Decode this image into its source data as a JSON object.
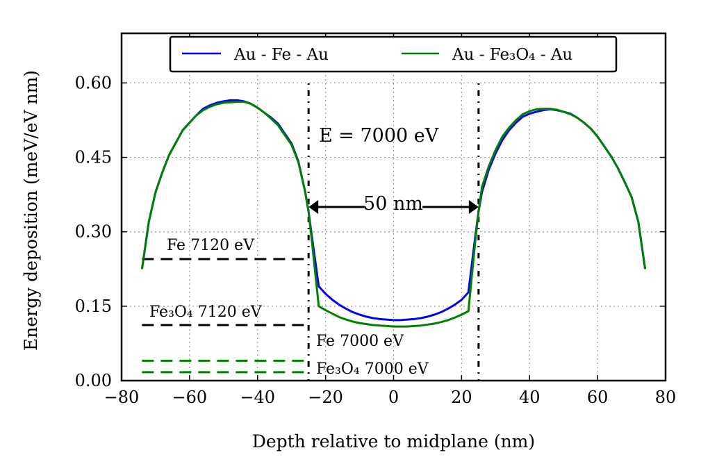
{
  "chart_data": {
    "type": "line",
    "title": "",
    "xlabel": "Depth relative to midplane (nm)",
    "ylabel": "Energy deposition (meV/eV nm)",
    "xlim": [
      -80,
      80
    ],
    "ylim": [
      0.0,
      0.6
    ],
    "ylim_display": [
      0.0,
      0.7
    ],
    "xticks": [
      -80,
      -60,
      -40,
      -20,
      0,
      20,
      40,
      60,
      80
    ],
    "xtick_labels": [
      "−80",
      "−60",
      "−40",
      "−20",
      "0",
      "20",
      "40",
      "60",
      "80"
    ],
    "yticks": [
      0.0,
      0.15,
      0.3,
      0.45,
      0.6
    ],
    "ytick_labels": [
      "0.00",
      "0.15",
      "0.30",
      "0.45",
      "0.60"
    ],
    "grid": true,
    "legend_position": "top-center",
    "series": [
      {
        "name": "Au - Fe - Au",
        "color": "#0000ff",
        "x": [
          -74,
          -72,
          -70,
          -68,
          -66,
          -64,
          -62,
          -60,
          -58,
          -56,
          -54,
          -52,
          -50,
          -48,
          -46,
          -44,
          -42,
          -40,
          -38,
          -36,
          -34,
          -32,
          -30,
          -28,
          -26,
          -25,
          -24,
          -22,
          -20,
          -18,
          -16,
          -14,
          -12,
          -10,
          -8,
          -6,
          -4,
          -2,
          0,
          2,
          4,
          6,
          8,
          10,
          12,
          14,
          16,
          18,
          20,
          22,
          24,
          25,
          26,
          28,
          30,
          32,
          34,
          36,
          38,
          40,
          42,
          44,
          46,
          48,
          50,
          52,
          54,
          56,
          58,
          60,
          62,
          64,
          66,
          68,
          70,
          72,
          74
        ],
        "y": [
          0.225,
          0.32,
          0.38,
          0.42,
          0.455,
          0.48,
          0.505,
          0.52,
          0.535,
          0.548,
          0.555,
          0.56,
          0.563,
          0.565,
          0.565,
          0.563,
          0.558,
          0.55,
          0.54,
          0.53,
          0.518,
          0.498,
          0.478,
          0.442,
          0.38,
          0.34,
          0.29,
          0.19,
          0.175,
          0.163,
          0.153,
          0.145,
          0.138,
          0.133,
          0.129,
          0.126,
          0.124,
          0.123,
          0.122,
          0.122,
          0.123,
          0.124,
          0.126,
          0.129,
          0.133,
          0.138,
          0.145,
          0.153,
          0.163,
          0.178,
          0.29,
          0.34,
          0.38,
          0.425,
          0.458,
          0.485,
          0.505,
          0.52,
          0.532,
          0.538,
          0.542,
          0.545,
          0.547,
          0.545,
          0.542,
          0.538,
          0.53,
          0.52,
          0.508,
          0.492,
          0.472,
          0.452,
          0.428,
          0.4,
          0.37,
          0.32,
          0.225
        ]
      },
      {
        "name": "Au - Fe₃O₄ - Au",
        "color": "#008000",
        "x": [
          -74,
          -72,
          -70,
          -68,
          -66,
          -64,
          -62,
          -60,
          -58,
          -56,
          -54,
          -52,
          -50,
          -48,
          -46,
          -44,
          -42,
          -40,
          -38,
          -36,
          -34,
          -32,
          -30,
          -28,
          -26,
          -25,
          -24,
          -22,
          -20,
          -18,
          -16,
          -14,
          -12,
          -10,
          -8,
          -6,
          -4,
          -2,
          0,
          2,
          4,
          6,
          8,
          10,
          12,
          14,
          16,
          18,
          20,
          22,
          24,
          25,
          26,
          28,
          30,
          32,
          34,
          36,
          38,
          40,
          42,
          44,
          46,
          48,
          50,
          52,
          54,
          56,
          58,
          60,
          62,
          64,
          66,
          68,
          70,
          72,
          74
        ],
        "y": [
          0.225,
          0.32,
          0.38,
          0.42,
          0.455,
          0.48,
          0.505,
          0.52,
          0.535,
          0.545,
          0.552,
          0.557,
          0.56,
          0.561,
          0.562,
          0.562,
          0.558,
          0.55,
          0.54,
          0.528,
          0.515,
          0.495,
          0.475,
          0.44,
          0.38,
          0.34,
          0.28,
          0.15,
          0.142,
          0.135,
          0.128,
          0.123,
          0.119,
          0.116,
          0.114,
          0.112,
          0.111,
          0.11,
          0.109,
          0.109,
          0.109,
          0.11,
          0.111,
          0.113,
          0.115,
          0.118,
          0.122,
          0.127,
          0.133,
          0.14,
          0.28,
          0.34,
          0.39,
          0.432,
          0.465,
          0.492,
          0.51,
          0.525,
          0.537,
          0.543,
          0.547,
          0.548,
          0.548,
          0.546,
          0.542,
          0.537,
          0.53,
          0.52,
          0.508,
          0.492,
          0.472,
          0.452,
          0.428,
          0.4,
          0.37,
          0.32,
          0.225
        ]
      }
    ],
    "reference_lines": [
      {
        "label": "Fe 7120 eV",
        "y": 0.245,
        "x": [
          -74,
          -26
        ],
        "color": "#000000",
        "style": "dashed"
      },
      {
        "label": "Fe₃O₄ 7120 eV",
        "y": 0.112,
        "x": [
          -74,
          -26
        ],
        "color": "#000000",
        "style": "dashed"
      },
      {
        "label": "Fe 7000 eV",
        "y": 0.04,
        "x": [
          -74,
          -26
        ],
        "color": "#008000",
        "style": "dashed"
      },
      {
        "label": "Fe₃O₄ 7000 eV",
        "y": 0.017,
        "x": [
          -74,
          -26
        ],
        "color": "#008000",
        "style": "dashed"
      }
    ],
    "boundaries": [
      -25,
      25
    ],
    "annotations": {
      "energy": "E = 7000 eV",
      "width": "50 nm",
      "fe_7120": "Fe 7120 eV",
      "fe3o4_7120": "Fe₃O₄ 7120 eV",
      "fe_7000": "Fe 7000 eV",
      "fe3o4_7000": "Fe₃O₄ 7000 eV"
    }
  }
}
